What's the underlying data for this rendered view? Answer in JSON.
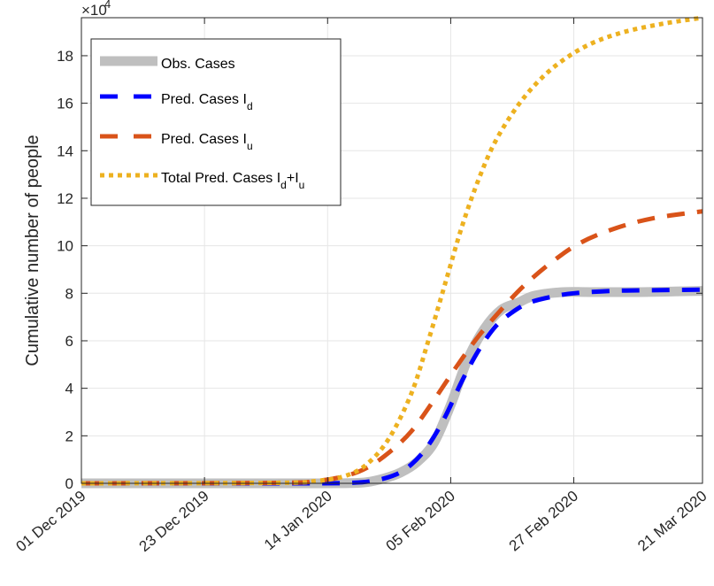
{
  "chart_data": {
    "type": "line",
    "title": "",
    "xlabel": "",
    "ylabel": "Cumulative number of people",
    "y_exponent_label": "×10",
    "y_exponent_power": "4",
    "y_scale_factor": 10000,
    "xlim": [
      "2019-12-01",
      "2020-03-21"
    ],
    "ylim": [
      0,
      19.6
    ],
    "x_tick_labels": [
      "01 Dec 2019",
      "23 Dec 2019",
      "14 Jan 2020",
      "05 Feb 2020",
      "27 Feb 2020",
      "21 Mar 2020"
    ],
    "x_ticks": [
      "2019-12-01",
      "2019-12-23",
      "2020-01-14",
      "2020-02-05",
      "2020-02-27",
      "2020-03-21"
    ],
    "y_ticks": [
      0,
      2,
      4,
      6,
      8,
      10,
      12,
      14,
      16,
      18
    ],
    "grid": true,
    "legend_position": "top-left",
    "series": [
      {
        "name": "Obs. Cases",
        "color": "#bfbfbf",
        "style": "solid-thick",
        "x": [
          "2019-12-01",
          "2019-12-20",
          "2020-01-10",
          "2020-01-18",
          "2020-01-21",
          "2020-01-24",
          "2020-01-27",
          "2020-01-30",
          "2020-02-02",
          "2020-02-05",
          "2020-02-08",
          "2020-02-11",
          "2020-02-14",
          "2020-02-17",
          "2020-02-20",
          "2020-02-25",
          "2020-03-01",
          "2020-03-10",
          "2020-03-21"
        ],
        "values": [
          0,
          0,
          0,
          0.01,
          0.05,
          0.2,
          0.45,
          0.9,
          1.7,
          3.3,
          5.2,
          6.5,
          7.3,
          7.6,
          7.9,
          8.05,
          8.05,
          8.05,
          8.1
        ]
      },
      {
        "name": "Pred. Cases I_d",
        "color": "#0000ff",
        "style": "dashed",
        "x": [
          "2019-12-01",
          "2020-01-10",
          "2020-01-18",
          "2020-01-22",
          "2020-01-26",
          "2020-01-29",
          "2020-02-01",
          "2020-02-04",
          "2020-02-07",
          "2020-02-10",
          "2020-02-13",
          "2020-02-16",
          "2020-02-19",
          "2020-02-23",
          "2020-02-27",
          "2020-03-05",
          "2020-03-12",
          "2020-03-21"
        ],
        "values": [
          0,
          0,
          0.02,
          0.1,
          0.35,
          0.8,
          1.6,
          2.8,
          4.3,
          5.6,
          6.6,
          7.2,
          7.6,
          7.85,
          8.0,
          8.1,
          8.13,
          8.15
        ]
      },
      {
        "name": "Pred. Cases I_u",
        "color": "#d95319",
        "style": "dashed",
        "x": [
          "2019-12-01",
          "2020-01-05",
          "2020-01-12",
          "2020-01-17",
          "2020-01-21",
          "2020-01-25",
          "2020-01-29",
          "2020-02-02",
          "2020-02-06",
          "2020-02-10",
          "2020-02-14",
          "2020-02-18",
          "2020-02-23",
          "2020-02-28",
          "2020-03-05",
          "2020-03-12",
          "2020-03-21"
        ],
        "values": [
          0,
          0.02,
          0.1,
          0.3,
          0.65,
          1.3,
          2.2,
          3.5,
          4.9,
          6.2,
          7.3,
          8.3,
          9.3,
          10.1,
          10.7,
          11.15,
          11.45
        ]
      },
      {
        "name": "Total Pred. Cases I_d+I_u",
        "color": "#edb120",
        "style": "dotted",
        "x": [
          "2019-12-01",
          "2020-01-05",
          "2020-01-12",
          "2020-01-17",
          "2020-01-21",
          "2020-01-25",
          "2020-01-29",
          "2020-02-01",
          "2020-02-04",
          "2020-02-07",
          "2020-02-10",
          "2020-02-13",
          "2020-02-17",
          "2020-02-21",
          "2020-02-25",
          "2020-03-01",
          "2020-03-07",
          "2020-03-14",
          "2020-03-21"
        ],
        "values": [
          0,
          0.02,
          0.1,
          0.3,
          0.8,
          1.9,
          3.8,
          6.0,
          8.4,
          10.8,
          12.8,
          14.4,
          15.9,
          17.0,
          17.8,
          18.5,
          19.0,
          19.35,
          19.6
        ]
      }
    ]
  },
  "legend": {
    "items": [
      {
        "text": "Obs. Cases",
        "sub1": "",
        "mid": "",
        "sub2": ""
      },
      {
        "text": "Pred. Cases I",
        "sub1": "d",
        "mid": "",
        "sub2": ""
      },
      {
        "text": "Pred. Cases I",
        "sub1": "u",
        "mid": "",
        "sub2": ""
      },
      {
        "text": "Total Pred. Cases I",
        "sub1": "d",
        "mid": "+I",
        "sub2": "u"
      }
    ]
  }
}
